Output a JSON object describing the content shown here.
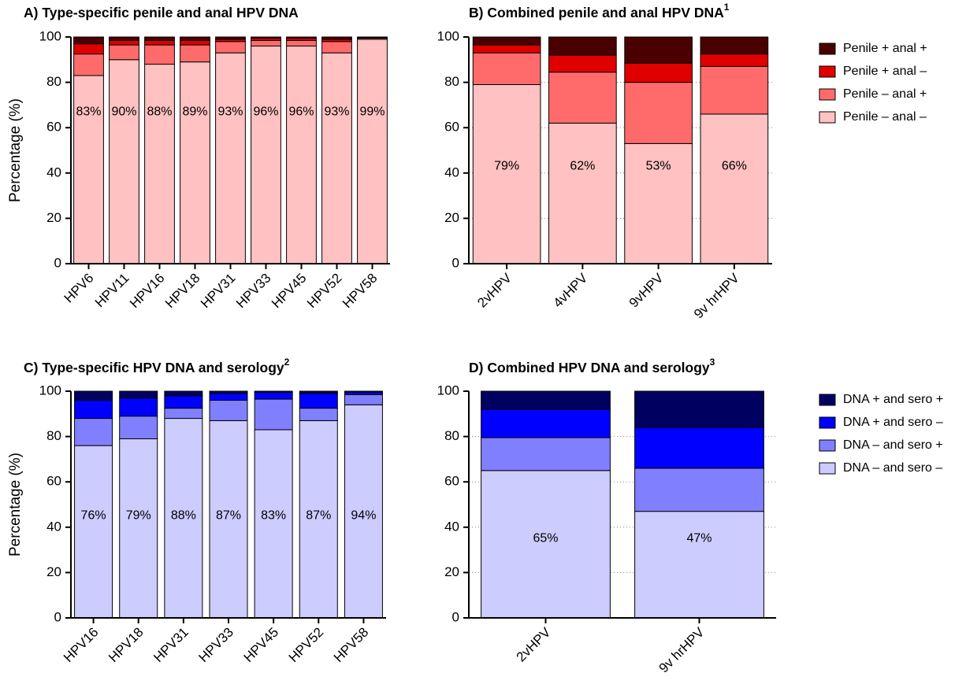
{
  "chart_data": [
    {
      "type": "bar",
      "stacked": true,
      "title": "A) Type-specific penile and anal HPV DNA",
      "y_label": "Percentage (%)",
      "categories": [
        "HPV6",
        "HPV11",
        "HPV16",
        "HPV18",
        "HPV31",
        "HPV33",
        "HPV45",
        "HPV52",
        "HPV58"
      ],
      "series": [
        {
          "name": "Penile – anal –",
          "color": "#ffc1c1",
          "values": [
            83,
            90,
            88,
            89,
            93,
            96,
            96,
            93,
            99
          ],
          "value_labels": [
            "83%",
            "90%",
            "88%",
            "89%",
            "93%",
            "96%",
            "96%",
            "93%",
            "99%"
          ]
        },
        {
          "name": "Penile – anal +",
          "color": "#ff6b6b",
          "values": [
            9.5,
            6.5,
            8.5,
            7.5,
            5,
            2.5,
            2.5,
            5,
            0.5
          ]
        },
        {
          "name": "Penile + anal –",
          "color": "#e00000",
          "values": [
            4.5,
            2,
            2,
            2,
            1,
            1,
            1,
            1,
            0.3
          ]
        },
        {
          "name": "Penile + anal +",
          "color": "#4a0000",
          "values": [
            3,
            1.5,
            1.5,
            1.5,
            1,
            0.5,
            0.5,
            1,
            0.2
          ]
        }
      ],
      "ylim": [
        0,
        100
      ],
      "yticks": [
        0,
        20,
        40,
        60,
        80,
        100
      ],
      "grid": false
    },
    {
      "type": "bar",
      "stacked": true,
      "title": "B) Combined penile and anal HPV DNA",
      "title_note": "1",
      "categories": [
        "2vHPV",
        "4vHPV",
        "9vHPV",
        "9v hrHPV"
      ],
      "series": [
        {
          "name": "Penile – anal –",
          "color": "#ffc1c1",
          "values": [
            79,
            62,
            53,
            66
          ],
          "value_labels": [
            "79%",
            "62%",
            "53%",
            "66%"
          ]
        },
        {
          "name": "Penile – anal +",
          "color": "#ff6b6b",
          "values": [
            14,
            22.5,
            27,
            21
          ]
        },
        {
          "name": "Penile + anal –",
          "color": "#e00000",
          "values": [
            3.5,
            7.5,
            8.5,
            5.5
          ]
        },
        {
          "name": "Penile + anal +",
          "color": "#4a0000",
          "values": [
            3.5,
            8,
            11.5,
            7.5
          ]
        }
      ],
      "ylim": [
        0,
        100
      ],
      "yticks": [
        0,
        20,
        40,
        60,
        80,
        100
      ],
      "grid": true,
      "legend": "right"
    },
    {
      "type": "bar",
      "stacked": true,
      "title": "C) Type-specific HPV DNA and serology",
      "title_note": "2",
      "y_label": "Percentage (%)",
      "categories": [
        "HPV16",
        "HPV18",
        "HPV31",
        "HPV33",
        "HPV45",
        "HPV52",
        "HPV58"
      ],
      "series": [
        {
          "name": "DNA – and sero –",
          "color": "#ccccff",
          "values": [
            76,
            79,
            88,
            87,
            83,
            87,
            94
          ],
          "value_labels": [
            "76%",
            "79%",
            "88%",
            "87%",
            "83%",
            "87%",
            "94%"
          ]
        },
        {
          "name": "DNA – and sero +",
          "color": "#8080ff",
          "values": [
            12,
            10,
            4.5,
            9,
            13.5,
            5.5,
            4.5
          ]
        },
        {
          "name": "DNA + and sero –",
          "color": "#0000ff",
          "values": [
            8,
            8,
            5.5,
            3,
            3,
            6.5,
            1
          ]
        },
        {
          "name": "DNA + and sero +",
          "color": "#000060",
          "values": [
            4,
            3,
            2,
            1,
            0.5,
            1,
            0.5
          ]
        }
      ],
      "ylim": [
        0,
        100
      ],
      "yticks": [
        0,
        20,
        40,
        60,
        80,
        100
      ],
      "grid": false
    },
    {
      "type": "bar",
      "stacked": true,
      "title": "D) Combined HPV DNA and serology",
      "title_note": "3",
      "categories": [
        "2vHPV",
        "9v hrHPV"
      ],
      "series": [
        {
          "name": "DNA – and sero –",
          "color": "#ccccff",
          "values": [
            65,
            47
          ],
          "value_labels": [
            "65%",
            "47%"
          ]
        },
        {
          "name": "DNA – and sero +",
          "color": "#8080ff",
          "values": [
            14.5,
            19
          ]
        },
        {
          "name": "DNA + and sero –",
          "color": "#0000ff",
          "values": [
            12.5,
            18
          ]
        },
        {
          "name": "DNA + and sero +",
          "color": "#000060",
          "values": [
            8,
            16
          ]
        }
      ],
      "ylim": [
        0,
        100
      ],
      "yticks": [
        0,
        20,
        40,
        60,
        80,
        100
      ],
      "grid": true,
      "legend": "right"
    }
  ]
}
